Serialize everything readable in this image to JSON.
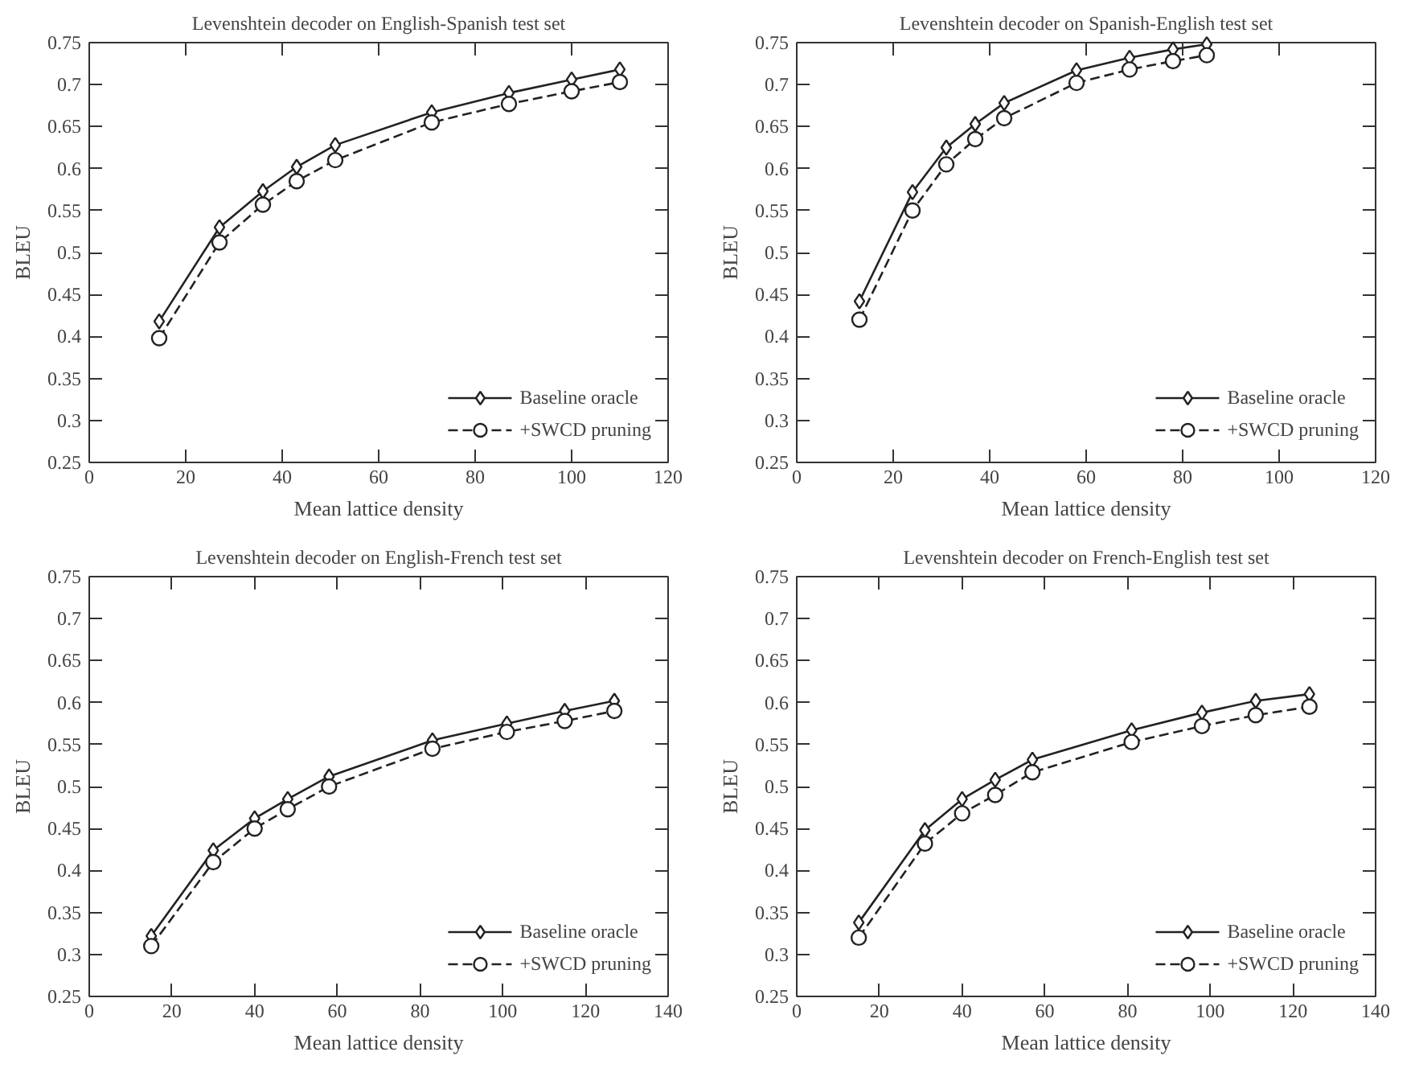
{
  "chart_data": [
    {
      "type": "line",
      "title": "Levenshtein decoder on English-Spanish test set",
      "xlabel": "Mean lattice density",
      "ylabel": "BLEU",
      "x": [
        14.5,
        27,
        36,
        43,
        51,
        71,
        87,
        100,
        110
      ],
      "xlim": [
        0,
        120
      ],
      "xticks": [
        0,
        20,
        40,
        60,
        80,
        100,
        120
      ],
      "ylim": [
        0.25,
        0.75
      ],
      "yticks": [
        0.25,
        0.3,
        0.35,
        0.4,
        0.45,
        0.5,
        0.55,
        0.6,
        0.65,
        0.7,
        0.75
      ],
      "grid": false,
      "legend": "bottom right",
      "series": [
        {
          "name": "Baseline oracle",
          "color": "#222222",
          "marker": "diamond",
          "line_style": "solid",
          "values": [
            0.418,
            0.53,
            0.573,
            0.602,
            0.628,
            0.667,
            0.69,
            0.706,
            0.718
          ]
        },
        {
          "name": "+SWCD pruning",
          "color": "#222222",
          "marker": "circle",
          "line_style": "dashed",
          "values": [
            0.398,
            0.512,
            0.557,
            0.585,
            0.61,
            0.655,
            0.677,
            0.692,
            0.703
          ]
        }
      ]
    },
    {
      "type": "line",
      "title": "Levenshtein decoder on Spanish-English test set",
      "xlabel": "Mean lattice density",
      "ylabel": "BLEU",
      "x": [
        13,
        24,
        31,
        37,
        43,
        58,
        69,
        78,
        85
      ],
      "xlim": [
        0,
        120
      ],
      "xticks": [
        0,
        20,
        40,
        60,
        80,
        100,
        120
      ],
      "ylim": [
        0.25,
        0.75
      ],
      "yticks": [
        0.25,
        0.3,
        0.35,
        0.4,
        0.45,
        0.5,
        0.55,
        0.6,
        0.65,
        0.7,
        0.75
      ],
      "grid": false,
      "legend": "bottom right",
      "series": [
        {
          "name": "Baseline oracle",
          "color": "#222222",
          "marker": "diamond",
          "line_style": "solid",
          "values": [
            0.442,
            0.572,
            0.625,
            0.653,
            0.678,
            0.717,
            0.732,
            0.742,
            0.748
          ]
        },
        {
          "name": "+SWCD pruning",
          "color": "#222222",
          "marker": "circle",
          "line_style": "dashed",
          "values": [
            0.42,
            0.55,
            0.605,
            0.635,
            0.66,
            0.702,
            0.718,
            0.728,
            0.735
          ]
        }
      ]
    },
    {
      "type": "line",
      "title": "Levenshtein decoder on English-French test set",
      "xlabel": "Mean lattice density",
      "ylabel": "BLEU",
      "x": [
        15,
        30,
        40,
        48,
        58,
        83,
        101,
        115,
        127
      ],
      "xlim": [
        0,
        140
      ],
      "xticks": [
        0,
        20,
        40,
        60,
        80,
        100,
        120,
        140
      ],
      "ylim": [
        0.25,
        0.75
      ],
      "yticks": [
        0.25,
        0.3,
        0.35,
        0.4,
        0.45,
        0.5,
        0.55,
        0.6,
        0.65,
        0.7,
        0.75
      ],
      "grid": false,
      "legend": "bottom right",
      "series": [
        {
          "name": "Baseline oracle",
          "color": "#222222",
          "marker": "diamond",
          "line_style": "solid",
          "values": [
            0.322,
            0.424,
            0.462,
            0.485,
            0.512,
            0.555,
            0.575,
            0.59,
            0.602
          ]
        },
        {
          "name": "+SWCD pruning",
          "color": "#222222",
          "marker": "circle",
          "line_style": "dashed",
          "values": [
            0.31,
            0.41,
            0.45,
            0.473,
            0.5,
            0.545,
            0.565,
            0.578,
            0.59
          ]
        }
      ]
    },
    {
      "type": "line",
      "title": "Levenshtein decoder on French-English test set",
      "xlabel": "Mean lattice density",
      "ylabel": "BLEU",
      "x": [
        15,
        31,
        40,
        48,
        57,
        81,
        98,
        111,
        124
      ],
      "xlim": [
        0,
        140
      ],
      "xticks": [
        0,
        20,
        40,
        60,
        80,
        100,
        120,
        140
      ],
      "ylim": [
        0.25,
        0.75
      ],
      "yticks": [
        0.25,
        0.3,
        0.35,
        0.4,
        0.45,
        0.5,
        0.55,
        0.6,
        0.65,
        0.7,
        0.75
      ],
      "grid": false,
      "legend": "bottom right",
      "series": [
        {
          "name": "Baseline oracle",
          "color": "#222222",
          "marker": "diamond",
          "line_style": "solid",
          "values": [
            0.338,
            0.448,
            0.485,
            0.508,
            0.532,
            0.567,
            0.588,
            0.602,
            0.61
          ]
        },
        {
          "name": "+SWCD pruning",
          "color": "#222222",
          "marker": "circle",
          "line_style": "dashed",
          "values": [
            0.32,
            0.432,
            0.468,
            0.49,
            0.517,
            0.553,
            0.572,
            0.585,
            0.595
          ]
        }
      ]
    }
  ]
}
